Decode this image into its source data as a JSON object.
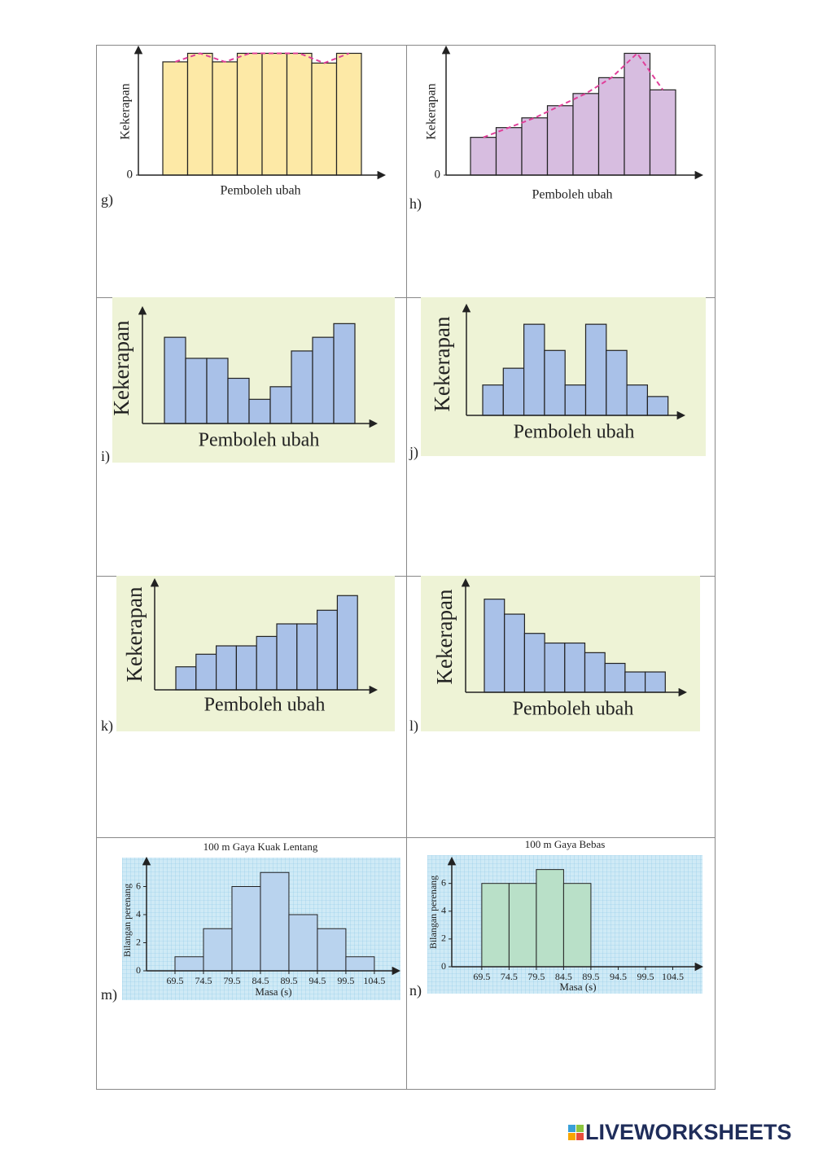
{
  "chart_data": [
    {
      "type": "bar",
      "label": "g)",
      "ylabel": "Kekerapan",
      "xlabel": "Pemboleh ubah",
      "color": "#fde9a6",
      "line_color": "#e0409a",
      "values": [
        9.3,
        10,
        9.3,
        10,
        10,
        10,
        9.2,
        10
      ],
      "ylim": [
        0,
        10.5
      ],
      "yticks": [
        0
      ]
    },
    {
      "type": "bar",
      "label": "h)",
      "ylabel": "Kekerapan",
      "xlabel": "Pemboleh ubah",
      "color": "#d7bde0",
      "line_color": "#e0409a",
      "values": [
        3.1,
        3.9,
        4.7,
        5.7,
        6.7,
        8,
        10,
        7
      ],
      "ylim": [
        0,
        10.5
      ],
      "yticks": [
        0
      ]
    },
    {
      "type": "bar",
      "label": "i)",
      "ylabel": "Kekerapan",
      "xlabel": "Pemboleh ubah",
      "color": "#a9c1e8",
      "background": "#eef3d6",
      "values": [
        8.2,
        6.2,
        6.2,
        4.3,
        2.3,
        3.5,
        6.9,
        8.2,
        9.5
      ],
      "ylim": [
        0,
        11
      ]
    },
    {
      "type": "bar",
      "label": "j)",
      "ylabel": "Kekerapan",
      "xlabel": "Pemboleh ubah",
      "color": "#a9c1e8",
      "background": "#eef3d6",
      "values": [
        2.9,
        4.5,
        8.7,
        6.2,
        2.9,
        8.7,
        6.2,
        2.9,
        1.8
      ],
      "ylim": [
        0,
        10.5
      ]
    },
    {
      "type": "bar",
      "label": "k)",
      "ylabel": "Kekerapan",
      "xlabel": "Pemboleh ubah",
      "color": "#a9c1e8",
      "background": "#eef3d6",
      "values": [
        2.2,
        3.4,
        4.2,
        4.2,
        5.1,
        6.3,
        6.3,
        7.6,
        9
      ],
      "ylim": [
        0,
        10.5
      ]
    },
    {
      "type": "bar",
      "label": "l)",
      "ylabel": "Kekerapan",
      "xlabel": "Pemboleh ubah",
      "color": "#a9c1e8",
      "background": "#eef3d6",
      "values": [
        8.7,
        7.3,
        5.5,
        4.6,
        4.6,
        3.7,
        2.7,
        1.9,
        1.9
      ],
      "ylim": [
        0,
        10.5
      ]
    },
    {
      "type": "histogram",
      "label": "m)",
      "title": "100 m Gaya Kuak Lentang",
      "ylabel": "Bilangan perenang",
      "xlabel": "Masa (s)",
      "color": "#b9d3ee",
      "background": "#cfeaf6",
      "bins": [
        69.5,
        74.5,
        79.5,
        84.5,
        89.5,
        94.5,
        99.5,
        104.5
      ],
      "values": [
        1,
        3,
        6,
        7,
        4,
        3,
        1
      ],
      "xlim": [
        64.5,
        108.8
      ],
      "xticks": [
        69.5,
        74.5,
        79.5,
        84.5,
        89.5,
        94.5,
        99.5,
        104.5
      ],
      "ylim": [
        0,
        8
      ],
      "yticks": [
        0,
        2,
        4,
        6
      ]
    },
    {
      "type": "histogram",
      "label": "n)",
      "title": "100 m Gaya Bebas",
      "ylabel": "Bilangan perenang",
      "xlabel": "Masa (s)",
      "color": "#b9e0c8",
      "background": "#cfeaf6",
      "bins": [
        69.5,
        74.5,
        79.5,
        84.5,
        89.5
      ],
      "values": [
        6,
        6,
        7,
        6
      ],
      "xlim": [
        64,
        109.8
      ],
      "xticks": [
        69.5,
        74.5,
        79.5,
        84.5,
        89.5,
        94.5,
        99.5,
        104.5
      ],
      "ylim": [
        0,
        7.8
      ],
      "yticks": [
        0,
        2,
        4,
        6
      ]
    }
  ],
  "logo": "LIVEWORKSHEETS"
}
